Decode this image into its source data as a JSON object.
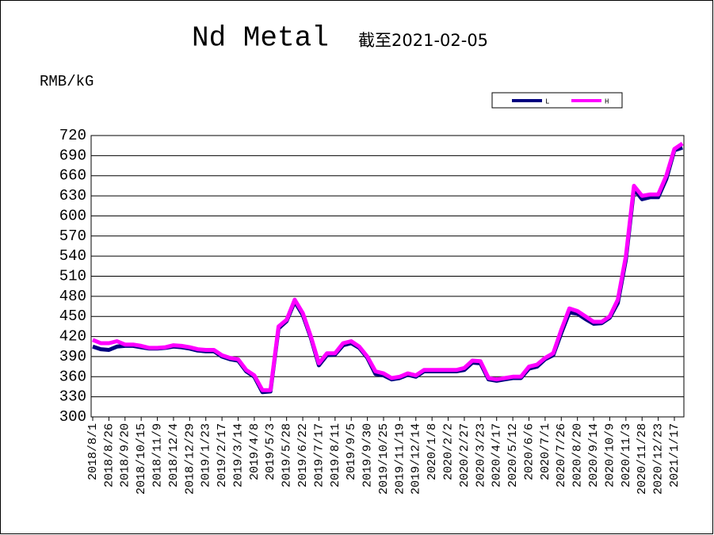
{
  "chart_data": {
    "type": "line",
    "title": "Nd Metal",
    "subtitle": "截至2021-02-05",
    "y_label": "RMB/kG",
    "categories": [
      "2018/8/1",
      null,
      "2018/8/26",
      null,
      "2018/9/20",
      null,
      "2018/10/15",
      null,
      "2018/11/9",
      null,
      "2018/12/4",
      null,
      "2018/12/29",
      null,
      "2019/1/23",
      null,
      "2019/2/17",
      null,
      "2019/3/14",
      null,
      "2019/4/8",
      null,
      "2019/5/3",
      null,
      "2019/5/28",
      null,
      "2019/6/22",
      null,
      "2019/7/17",
      null,
      "2019/8/11",
      null,
      "2019/9/5",
      null,
      "2019/9/30",
      null,
      "2019/10/25",
      null,
      "2019/11/19",
      null,
      "2019/12/14",
      null,
      "2020/1/8",
      null,
      "2020/2/2",
      null,
      "2020/2/27",
      null,
      "2020/3/23",
      null,
      "2020/4/17",
      null,
      "2020/5/12",
      null,
      "2020/6/6",
      null,
      "2020/7/1",
      null,
      "2020/7/26",
      null,
      "2020/8/20",
      null,
      "2020/9/14",
      null,
      "2020/10/9",
      null,
      "2020/11/3",
      null,
      "2020/11/28",
      null,
      "2020/12/23",
      null,
      "2021/1/17",
      null
    ],
    "series": [
      {
        "name": "L",
        "color": "#000080",
        "values": [
          405,
          401,
          400,
          405,
          406,
          406,
          404,
          402,
          402,
          403,
          405,
          404,
          402,
          399,
          398,
          398,
          390,
          386,
          384,
          368,
          360,
          337,
          338,
          432,
          443,
          472,
          452,
          418,
          377,
          392,
          393,
          407,
          410,
          403,
          388,
          364,
          362,
          356,
          358,
          363,
          360,
          368,
          368,
          368,
          368,
          368,
          370,
          381,
          380,
          356,
          354,
          356,
          358,
          358,
          372,
          375,
          386,
          392,
          425,
          456,
          454,
          446,
          439,
          440,
          448,
          470,
          535,
          640,
          625,
          628,
          628,
          655,
          698,
          702
        ]
      },
      {
        "name": "H",
        "color": "#ff00ff",
        "values": [
          415,
          410,
          410,
          413,
          408,
          408,
          406,
          403,
          403,
          404,
          407,
          406,
          404,
          401,
          400,
          400,
          392,
          388,
          386,
          370,
          362,
          340,
          340,
          435,
          445,
          475,
          455,
          420,
          380,
          395,
          395,
          410,
          413,
          405,
          390,
          368,
          365,
          358,
          360,
          365,
          362,
          370,
          370,
          370,
          370,
          370,
          373,
          384,
          383,
          358,
          356,
          358,
          360,
          360,
          375,
          378,
          388,
          395,
          430,
          462,
          458,
          450,
          442,
          442,
          450,
          475,
          540,
          645,
          630,
          632,
          632,
          660,
          700,
          708
        ]
      }
    ],
    "ylim": [
      300,
      720
    ],
    "yticks": [
      300,
      330,
      360,
      390,
      420,
      450,
      480,
      510,
      540,
      570,
      600,
      630,
      660,
      690,
      720
    ],
    "grid": true
  }
}
